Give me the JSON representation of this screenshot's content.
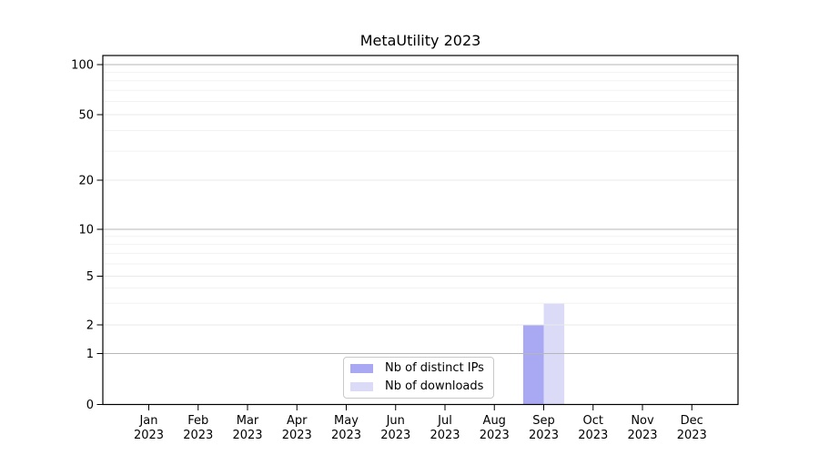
{
  "title": "MetaUtility 2023",
  "chart_data": {
    "type": "bar",
    "title": "MetaUtility 2023",
    "categories": [
      "Jan 2023",
      "Feb 2023",
      "Mar 2023",
      "Apr 2023",
      "May 2023",
      "Jun 2023",
      "Jul 2023",
      "Aug 2023",
      "Sep 2023",
      "Oct 2023",
      "Nov 2023",
      "Dec 2023"
    ],
    "series": [
      {
        "name": "Nb of distinct IPs",
        "color": "#a9a9f3",
        "values": [
          0,
          0,
          0,
          0,
          0,
          0,
          0,
          0,
          2,
          0,
          0,
          0
        ]
      },
      {
        "name": "Nb of downloads",
        "color": "#dbdbf8",
        "values": [
          0,
          0,
          0,
          0,
          0,
          0,
          0,
          0,
          3,
          0,
          0,
          0
        ]
      }
    ],
    "xlabel": "",
    "ylabel": "",
    "y_axis": {
      "scale": "log-like (compressed near zero)",
      "ticks": [
        0,
        1,
        2,
        5,
        10,
        20,
        50,
        100
      ],
      "minor_gridlines": [
        3,
        4,
        6,
        7,
        8,
        9,
        30,
        40,
        60,
        70,
        80,
        90
      ],
      "range": [
        0,
        115
      ]
    },
    "grid": true,
    "legend_position": "lower center inside"
  }
}
